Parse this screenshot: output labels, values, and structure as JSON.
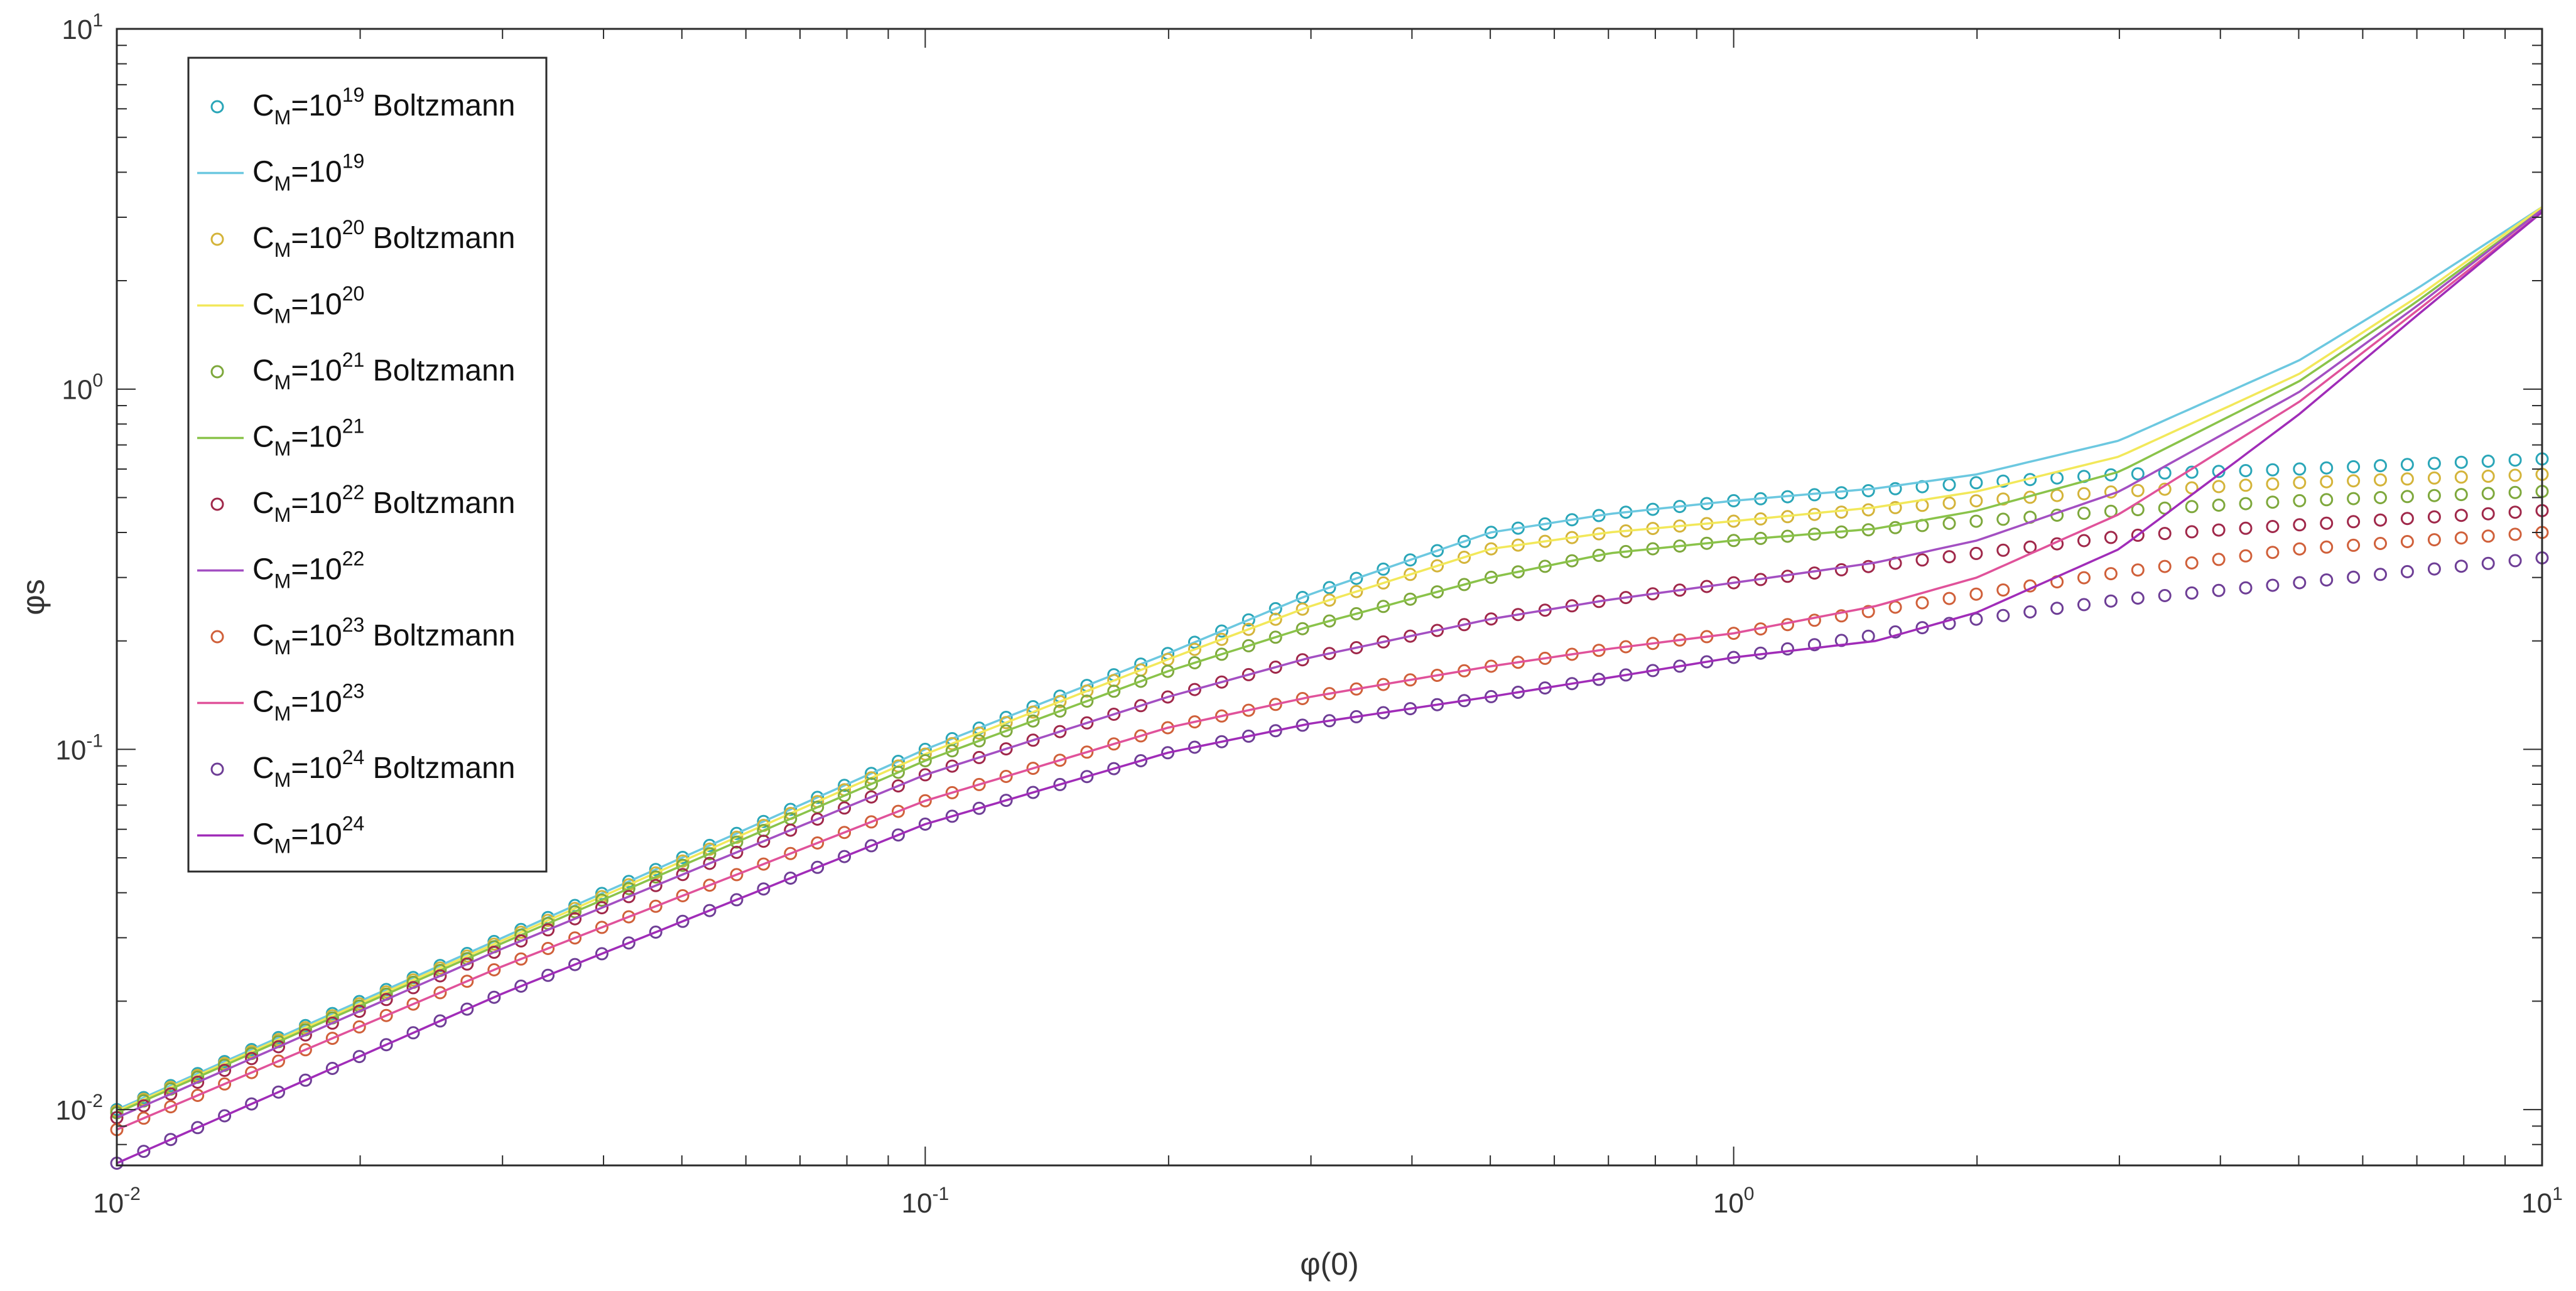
{
  "chart_data": {
    "type": "scatter",
    "xscale": "log",
    "yscale": "log",
    "xlabel": "φ(0)",
    "ylabel": "φs",
    "xlim": [
      0.01,
      10
    ],
    "ylim": [
      0.007,
      10
    ],
    "grid": false,
    "legend_position": "top-left",
    "x_ticks": [
      {
        "base": "10",
        "exp": "-2"
      },
      {
        "base": "10",
        "exp": "-1"
      },
      {
        "base": "10",
        "exp": "0"
      },
      {
        "base": "10",
        "exp": "1"
      }
    ],
    "y_ticks": [
      {
        "base": "10",
        "exp": "-2"
      },
      {
        "base": "10",
        "exp": "-1"
      },
      {
        "base": "10",
        "exp": "0"
      },
      {
        "base": "10",
        "exp": "1"
      }
    ],
    "series": [
      {
        "name": "CM=10^19 Boltzmann",
        "legend_main": "C",
        "legend_sub": "M",
        "legend_mid": "=10",
        "legend_sup": "19",
        "legend_suffix": " Boltzmann",
        "style": "markers",
        "color": "#2aa6b8",
        "points": [
          [
            0.01,
            0.01
          ],
          [
            0.03,
            0.03
          ],
          [
            0.1,
            0.1
          ],
          [
            0.2,
            0.185
          ],
          [
            0.3,
            0.27
          ],
          [
            0.5,
            0.4
          ],
          [
            0.7,
            0.45
          ],
          [
            1,
            0.49
          ],
          [
            2,
            0.55
          ],
          [
            3,
            0.58
          ],
          [
            5,
            0.6
          ],
          [
            10,
            0.64
          ]
        ]
      },
      {
        "name": "CM=10^19",
        "legend_main": "C",
        "legend_sub": "M",
        "legend_mid": "=10",
        "legend_sup": "19",
        "legend_suffix": "",
        "style": "line",
        "color": "#6cc8e0",
        "points": [
          [
            0.01,
            0.01
          ],
          [
            0.03,
            0.03
          ],
          [
            0.1,
            0.1
          ],
          [
            0.2,
            0.185
          ],
          [
            0.3,
            0.27
          ],
          [
            0.5,
            0.4
          ],
          [
            0.7,
            0.45
          ],
          [
            1,
            0.49
          ],
          [
            1.5,
            0.53
          ],
          [
            2,
            0.58
          ],
          [
            3,
            0.72
          ],
          [
            5,
            1.2
          ],
          [
            7,
            1.9
          ],
          [
            10,
            3.2
          ]
        ]
      },
      {
        "name": "CM=10^20 Boltzmann",
        "legend_main": "C",
        "legend_sub": "M",
        "legend_mid": "=10",
        "legend_sup": "20",
        "legend_suffix": " Boltzmann",
        "style": "markers",
        "color": "#d4b43a",
        "points": [
          [
            0.01,
            0.0099
          ],
          [
            0.03,
            0.0295
          ],
          [
            0.1,
            0.097
          ],
          [
            0.2,
            0.178
          ],
          [
            0.3,
            0.25
          ],
          [
            0.5,
            0.36
          ],
          [
            0.7,
            0.4
          ],
          [
            1,
            0.43
          ],
          [
            2,
            0.49
          ],
          [
            3,
            0.52
          ],
          [
            5,
            0.55
          ],
          [
            10,
            0.58
          ]
        ]
      },
      {
        "name": "CM=10^20",
        "legend_main": "C",
        "legend_sub": "M",
        "legend_mid": "=10",
        "legend_sup": "20",
        "legend_suffix": "",
        "style": "line",
        "color": "#f2e85a",
        "points": [
          [
            0.01,
            0.0099
          ],
          [
            0.03,
            0.0295
          ],
          [
            0.1,
            0.097
          ],
          [
            0.2,
            0.178
          ],
          [
            0.3,
            0.25
          ],
          [
            0.5,
            0.36
          ],
          [
            0.7,
            0.4
          ],
          [
            1,
            0.43
          ],
          [
            1.5,
            0.47
          ],
          [
            2,
            0.52
          ],
          [
            3,
            0.65
          ],
          [
            5,
            1.1
          ],
          [
            7,
            1.8
          ],
          [
            10,
            3.2
          ]
        ]
      },
      {
        "name": "CM=10^21 Boltzmann",
        "legend_main": "C",
        "legend_sub": "M",
        "legend_mid": "=10",
        "legend_sup": "21",
        "legend_suffix": " Boltzmann",
        "style": "markers",
        "color": "#7ea83c",
        "points": [
          [
            0.01,
            0.0098
          ],
          [
            0.03,
            0.029
          ],
          [
            0.1,
            0.093
          ],
          [
            0.2,
            0.165
          ],
          [
            0.3,
            0.22
          ],
          [
            0.5,
            0.3
          ],
          [
            0.7,
            0.35
          ],
          [
            1,
            0.38
          ],
          [
            2,
            0.43
          ],
          [
            3,
            0.46
          ],
          [
            5,
            0.49
          ],
          [
            10,
            0.52
          ]
        ]
      },
      {
        "name": "CM=10^21",
        "legend_main": "C",
        "legend_sub": "M",
        "legend_mid": "=10",
        "legend_sup": "21",
        "legend_suffix": "",
        "style": "line",
        "color": "#8ac34a",
        "points": [
          [
            0.01,
            0.0098
          ],
          [
            0.03,
            0.029
          ],
          [
            0.1,
            0.093
          ],
          [
            0.2,
            0.165
          ],
          [
            0.3,
            0.22
          ],
          [
            0.5,
            0.3
          ],
          [
            0.7,
            0.35
          ],
          [
            1,
            0.38
          ],
          [
            1.5,
            0.41
          ],
          [
            2,
            0.46
          ],
          [
            3,
            0.59
          ],
          [
            5,
            1.05
          ],
          [
            7,
            1.75
          ],
          [
            10,
            3.15
          ]
        ]
      },
      {
        "name": "CM=10^22 Boltzmann",
        "legend_main": "C",
        "legend_sub": "M",
        "legend_mid": "=10",
        "legend_sup": "22",
        "legend_suffix": " Boltzmann",
        "style": "markers",
        "color": "#a0284a",
        "points": [
          [
            0.01,
            0.0095
          ],
          [
            0.03,
            0.028
          ],
          [
            0.1,
            0.085
          ],
          [
            0.2,
            0.14
          ],
          [
            0.3,
            0.18
          ],
          [
            0.5,
            0.23
          ],
          [
            0.7,
            0.26
          ],
          [
            1,
            0.29
          ],
          [
            2,
            0.35
          ],
          [
            3,
            0.39
          ],
          [
            5,
            0.42
          ],
          [
            10,
            0.46
          ]
        ]
      },
      {
        "name": "CM=10^22",
        "legend_main": "C",
        "legend_sub": "M",
        "legend_mid": "=10",
        "legend_sup": "22",
        "legend_suffix": "",
        "style": "line",
        "color": "#a34fc2",
        "points": [
          [
            0.01,
            0.0095
          ],
          [
            0.03,
            0.028
          ],
          [
            0.1,
            0.085
          ],
          [
            0.2,
            0.14
          ],
          [
            0.3,
            0.18
          ],
          [
            0.5,
            0.23
          ],
          [
            0.7,
            0.26
          ],
          [
            1,
            0.29
          ],
          [
            1.5,
            0.33
          ],
          [
            2,
            0.38
          ],
          [
            3,
            0.52
          ],
          [
            5,
            0.98
          ],
          [
            7,
            1.7
          ],
          [
            10,
            3.15
          ]
        ]
      },
      {
        "name": "CM=10^23 Boltzmann",
        "legend_main": "C",
        "legend_sub": "M",
        "legend_mid": "=10",
        "legend_sup": "23",
        "legend_suffix": " Boltzmann",
        "style": "markers",
        "color": "#d0603a",
        "points": [
          [
            0.01,
            0.0088
          ],
          [
            0.03,
            0.025
          ],
          [
            0.1,
            0.072
          ],
          [
            0.2,
            0.115
          ],
          [
            0.3,
            0.14
          ],
          [
            0.5,
            0.17
          ],
          [
            0.7,
            0.19
          ],
          [
            1,
            0.21
          ],
          [
            2,
            0.27
          ],
          [
            3,
            0.31
          ],
          [
            5,
            0.36
          ],
          [
            10,
            0.4
          ]
        ]
      },
      {
        "name": "CM=10^23",
        "legend_main": "C",
        "legend_sub": "M",
        "legend_mid": "=10",
        "legend_sup": "23",
        "legend_suffix": "",
        "style": "line",
        "color": "#e0529a",
        "points": [
          [
            0.01,
            0.0088
          ],
          [
            0.03,
            0.025
          ],
          [
            0.1,
            0.072
          ],
          [
            0.2,
            0.115
          ],
          [
            0.3,
            0.14
          ],
          [
            0.5,
            0.17
          ],
          [
            0.7,
            0.19
          ],
          [
            1,
            0.21
          ],
          [
            1.5,
            0.25
          ],
          [
            2,
            0.3
          ],
          [
            3,
            0.45
          ],
          [
            5,
            0.92
          ],
          [
            7,
            1.65
          ],
          [
            10,
            3.1
          ]
        ]
      },
      {
        "name": "CM=10^24 Boltzmann",
        "legend_main": "C",
        "legend_sub": "M",
        "legend_mid": "=10",
        "legend_sup": "24",
        "legend_suffix": " Boltzmann",
        "style": "markers",
        "color": "#6e3e96",
        "points": [
          [
            0.01,
            0.0071
          ],
          [
            0.03,
            0.021
          ],
          [
            0.1,
            0.062
          ],
          [
            0.2,
            0.098
          ],
          [
            0.3,
            0.118
          ],
          [
            0.5,
            0.14
          ],
          [
            0.7,
            0.158
          ],
          [
            1,
            0.18
          ],
          [
            2,
            0.23
          ],
          [
            3,
            0.26
          ],
          [
            5,
            0.29
          ],
          [
            10,
            0.34
          ]
        ]
      },
      {
        "name": "CM=10^24",
        "legend_main": "C",
        "legend_sub": "M",
        "legend_mid": "=10",
        "legend_sup": "24",
        "legend_suffix": "",
        "style": "line",
        "color": "#a02cb8",
        "points": [
          [
            0.01,
            0.0071
          ],
          [
            0.03,
            0.021
          ],
          [
            0.1,
            0.062
          ],
          [
            0.2,
            0.098
          ],
          [
            0.3,
            0.118
          ],
          [
            0.5,
            0.14
          ],
          [
            0.7,
            0.158
          ],
          [
            1,
            0.18
          ],
          [
            1.5,
            0.2
          ],
          [
            2,
            0.24
          ],
          [
            3,
            0.36
          ],
          [
            5,
            0.85
          ],
          [
            7,
            1.6
          ],
          [
            10,
            3.1
          ]
        ]
      }
    ]
  }
}
